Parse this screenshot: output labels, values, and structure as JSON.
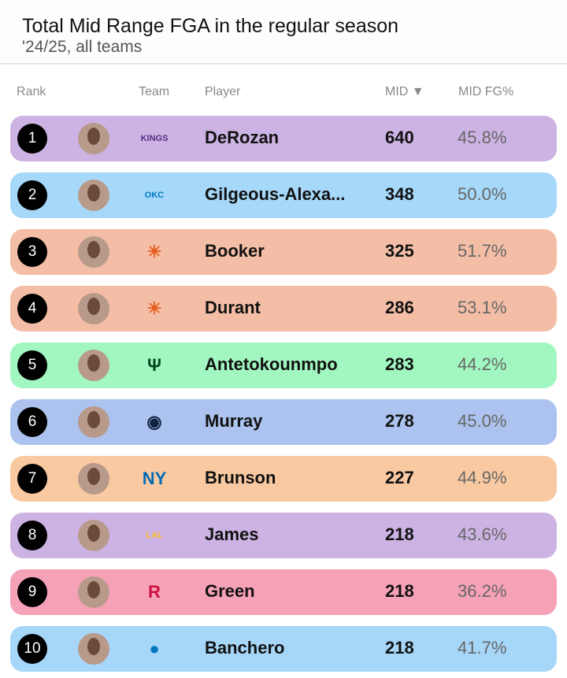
{
  "header": {
    "title": "Total Mid Range FGA in the regular season",
    "subtitle": "'24/25, all teams"
  },
  "columns": {
    "rank": "Rank",
    "team": "Team",
    "player": "Player",
    "mid": "MID ▼",
    "pct": "MID FG%"
  },
  "rows": [
    {
      "rank": "1",
      "team": "Sacramento Kings",
      "logo": "KINGS",
      "player": "DeRozan",
      "mid": "640",
      "pct": "45.8%",
      "color": "#ccb3e3",
      "logo_color": "#5a2d81"
    },
    {
      "rank": "2",
      "team": "Oklahoma City Thunder",
      "logo": "OKC",
      "player": "Gilgeous-Alexa...",
      "mid": "348",
      "pct": "50.0%",
      "color": "#a6d8f9",
      "logo_color": "#007ac1"
    },
    {
      "rank": "3",
      "team": "Phoenix Suns",
      "logo": "☀",
      "player": "Booker",
      "mid": "325",
      "pct": "51.7%",
      "color": "#f4bea6",
      "logo_color": "#e56020"
    },
    {
      "rank": "4",
      "team": "Phoenix Suns",
      "logo": "☀",
      "player": "Durant",
      "mid": "286",
      "pct": "53.1%",
      "color": "#f4bea6",
      "logo_color": "#e56020"
    },
    {
      "rank": "5",
      "team": "Milwaukee Bucks",
      "logo": "Ψ",
      "player": "Antetokounmpo",
      "mid": "283",
      "pct": "44.2%",
      "color": "#a1f7bf",
      "logo_color": "#00471b"
    },
    {
      "rank": "6",
      "team": "Denver Nuggets",
      "logo": "◉",
      "player": "Murray",
      "mid": "278",
      "pct": "45.0%",
      "color": "#abc3ee",
      "logo_color": "#0e2240"
    },
    {
      "rank": "7",
      "team": "New York Knicks",
      "logo": "NY",
      "player": "Brunson",
      "mid": "227",
      "pct": "44.9%",
      "color": "#f9c9a1",
      "logo_color": "#006bb6"
    },
    {
      "rank": "8",
      "team": "Los Angeles Lakers",
      "logo": "LAL",
      "player": "James",
      "mid": "218",
      "pct": "43.6%",
      "color": "#ccb3e3",
      "logo_color": "#fdb927"
    },
    {
      "rank": "9",
      "team": "Houston Rockets",
      "logo": "R",
      "player": "Green",
      "mid": "218",
      "pct": "36.2%",
      "color": "#f5a1b6",
      "logo_color": "#ce1141"
    },
    {
      "rank": "10",
      "team": "Orlando Magic",
      "logo": "●",
      "player": "Banchero",
      "mid": "218",
      "pct": "41.7%",
      "color": "#a6d6f8",
      "logo_color": "#0077c0"
    }
  ]
}
